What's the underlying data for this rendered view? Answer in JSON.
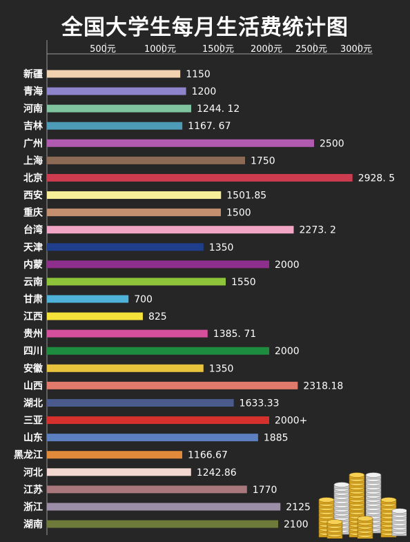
{
  "chart_data": {
    "type": "bar",
    "orientation": "horizontal",
    "title": "全国大学生每月生活费统计图",
    "xlabel": "",
    "ylabel": "",
    "xlim": [
      0,
      3000
    ],
    "x_ticks": [
      {
        "value": 500,
        "label": "500元"
      },
      {
        "value": 1000,
        "label": "1000元"
      },
      {
        "value": 1500,
        "label": "1500元"
      },
      {
        "value": 2000,
        "label": "2000元"
      },
      {
        "value": 2500,
        "label": "2500元"
      },
      {
        "value": 3000,
        "label": "3000元"
      }
    ],
    "grid": false,
    "bars": [
      {
        "category": "新疆",
        "value": 1150,
        "label": "1150",
        "color": "#f1d2b0"
      },
      {
        "category": "青海",
        "value": 1200,
        "label": "1200",
        "color": "#8e84cc"
      },
      {
        "category": "河南",
        "value": 1244.12,
        "label": "1244. 12",
        "color": "#7fc49f"
      },
      {
        "category": "吉林",
        "value": 1167.67,
        "label": "1167. 67",
        "color": "#4e9bb7"
      },
      {
        "category": "广州",
        "value": 2500,
        "label": "2500",
        "color": "#b05bb0"
      },
      {
        "category": "上海",
        "value": 1750,
        "label": "1750",
        "color": "#8d6a55"
      },
      {
        "category": "北京",
        "value": 2928.5,
        "label": "2928. 5",
        "color": "#cc3b4e"
      },
      {
        "category": "西安",
        "value": 1501.85,
        "label": "1501.85",
        "color": "#f7ee9a"
      },
      {
        "category": "重庆",
        "value": 1500,
        "label": "1500",
        "color": "#c38f6e"
      },
      {
        "category": "台湾",
        "value": 2273.2,
        "label": "2273. 2",
        "color": "#f1a6c5"
      },
      {
        "category": "天津",
        "value": 1350,
        "label": "1350",
        "color": "#1f3f8c"
      },
      {
        "category": "内蒙",
        "value": 2000,
        "label": "2000",
        "color": "#8e2f8e"
      },
      {
        "category": "云南",
        "value": 1550,
        "label": "1550",
        "color": "#8ec43a"
      },
      {
        "category": "甘肃",
        "value": 700,
        "label": "700",
        "color": "#4fb3d9"
      },
      {
        "category": "江西",
        "value": 825,
        "label": "825",
        "color": "#f4e23a"
      },
      {
        "category": "贵州",
        "value": 1385.71,
        "label": "1385. 71",
        "color": "#d64f9a"
      },
      {
        "category": "四川",
        "value": 2000,
        "label": "2000",
        "color": "#1e8c3e"
      },
      {
        "category": "安徽",
        "value": 1350,
        "label": "1350",
        "color": "#e8c43d"
      },
      {
        "category": "山西",
        "value": 2318.18,
        "label": "2318.18",
        "color": "#e07a6a"
      },
      {
        "category": "湖北",
        "value": 1633.33,
        "label": "1633.33",
        "color": "#4a5a8c"
      },
      {
        "category": "三亚",
        "value": 2000,
        "label": "2000+",
        "color": "#d4302c"
      },
      {
        "category": "山东",
        "value": 1885,
        "label": "1885",
        "color": "#5b7fbf"
      },
      {
        "category": "黑龙江",
        "value": 1166.67,
        "label": "1166.67",
        "color": "#e08a3a"
      },
      {
        "category": "河北",
        "value": 1242.86,
        "label": "1242.86",
        "color": "#f2d8d0"
      },
      {
        "category": "江苏",
        "value": 1770,
        "label": "1770",
        "color": "#a8787c"
      },
      {
        "category": "浙江",
        "value": 2125,
        "label": "2125",
        "color": "#9c8ea6"
      },
      {
        "category": "湖南",
        "value": 2100,
        "label": "2100",
        "color": "#6e7a3a"
      }
    ]
  }
}
